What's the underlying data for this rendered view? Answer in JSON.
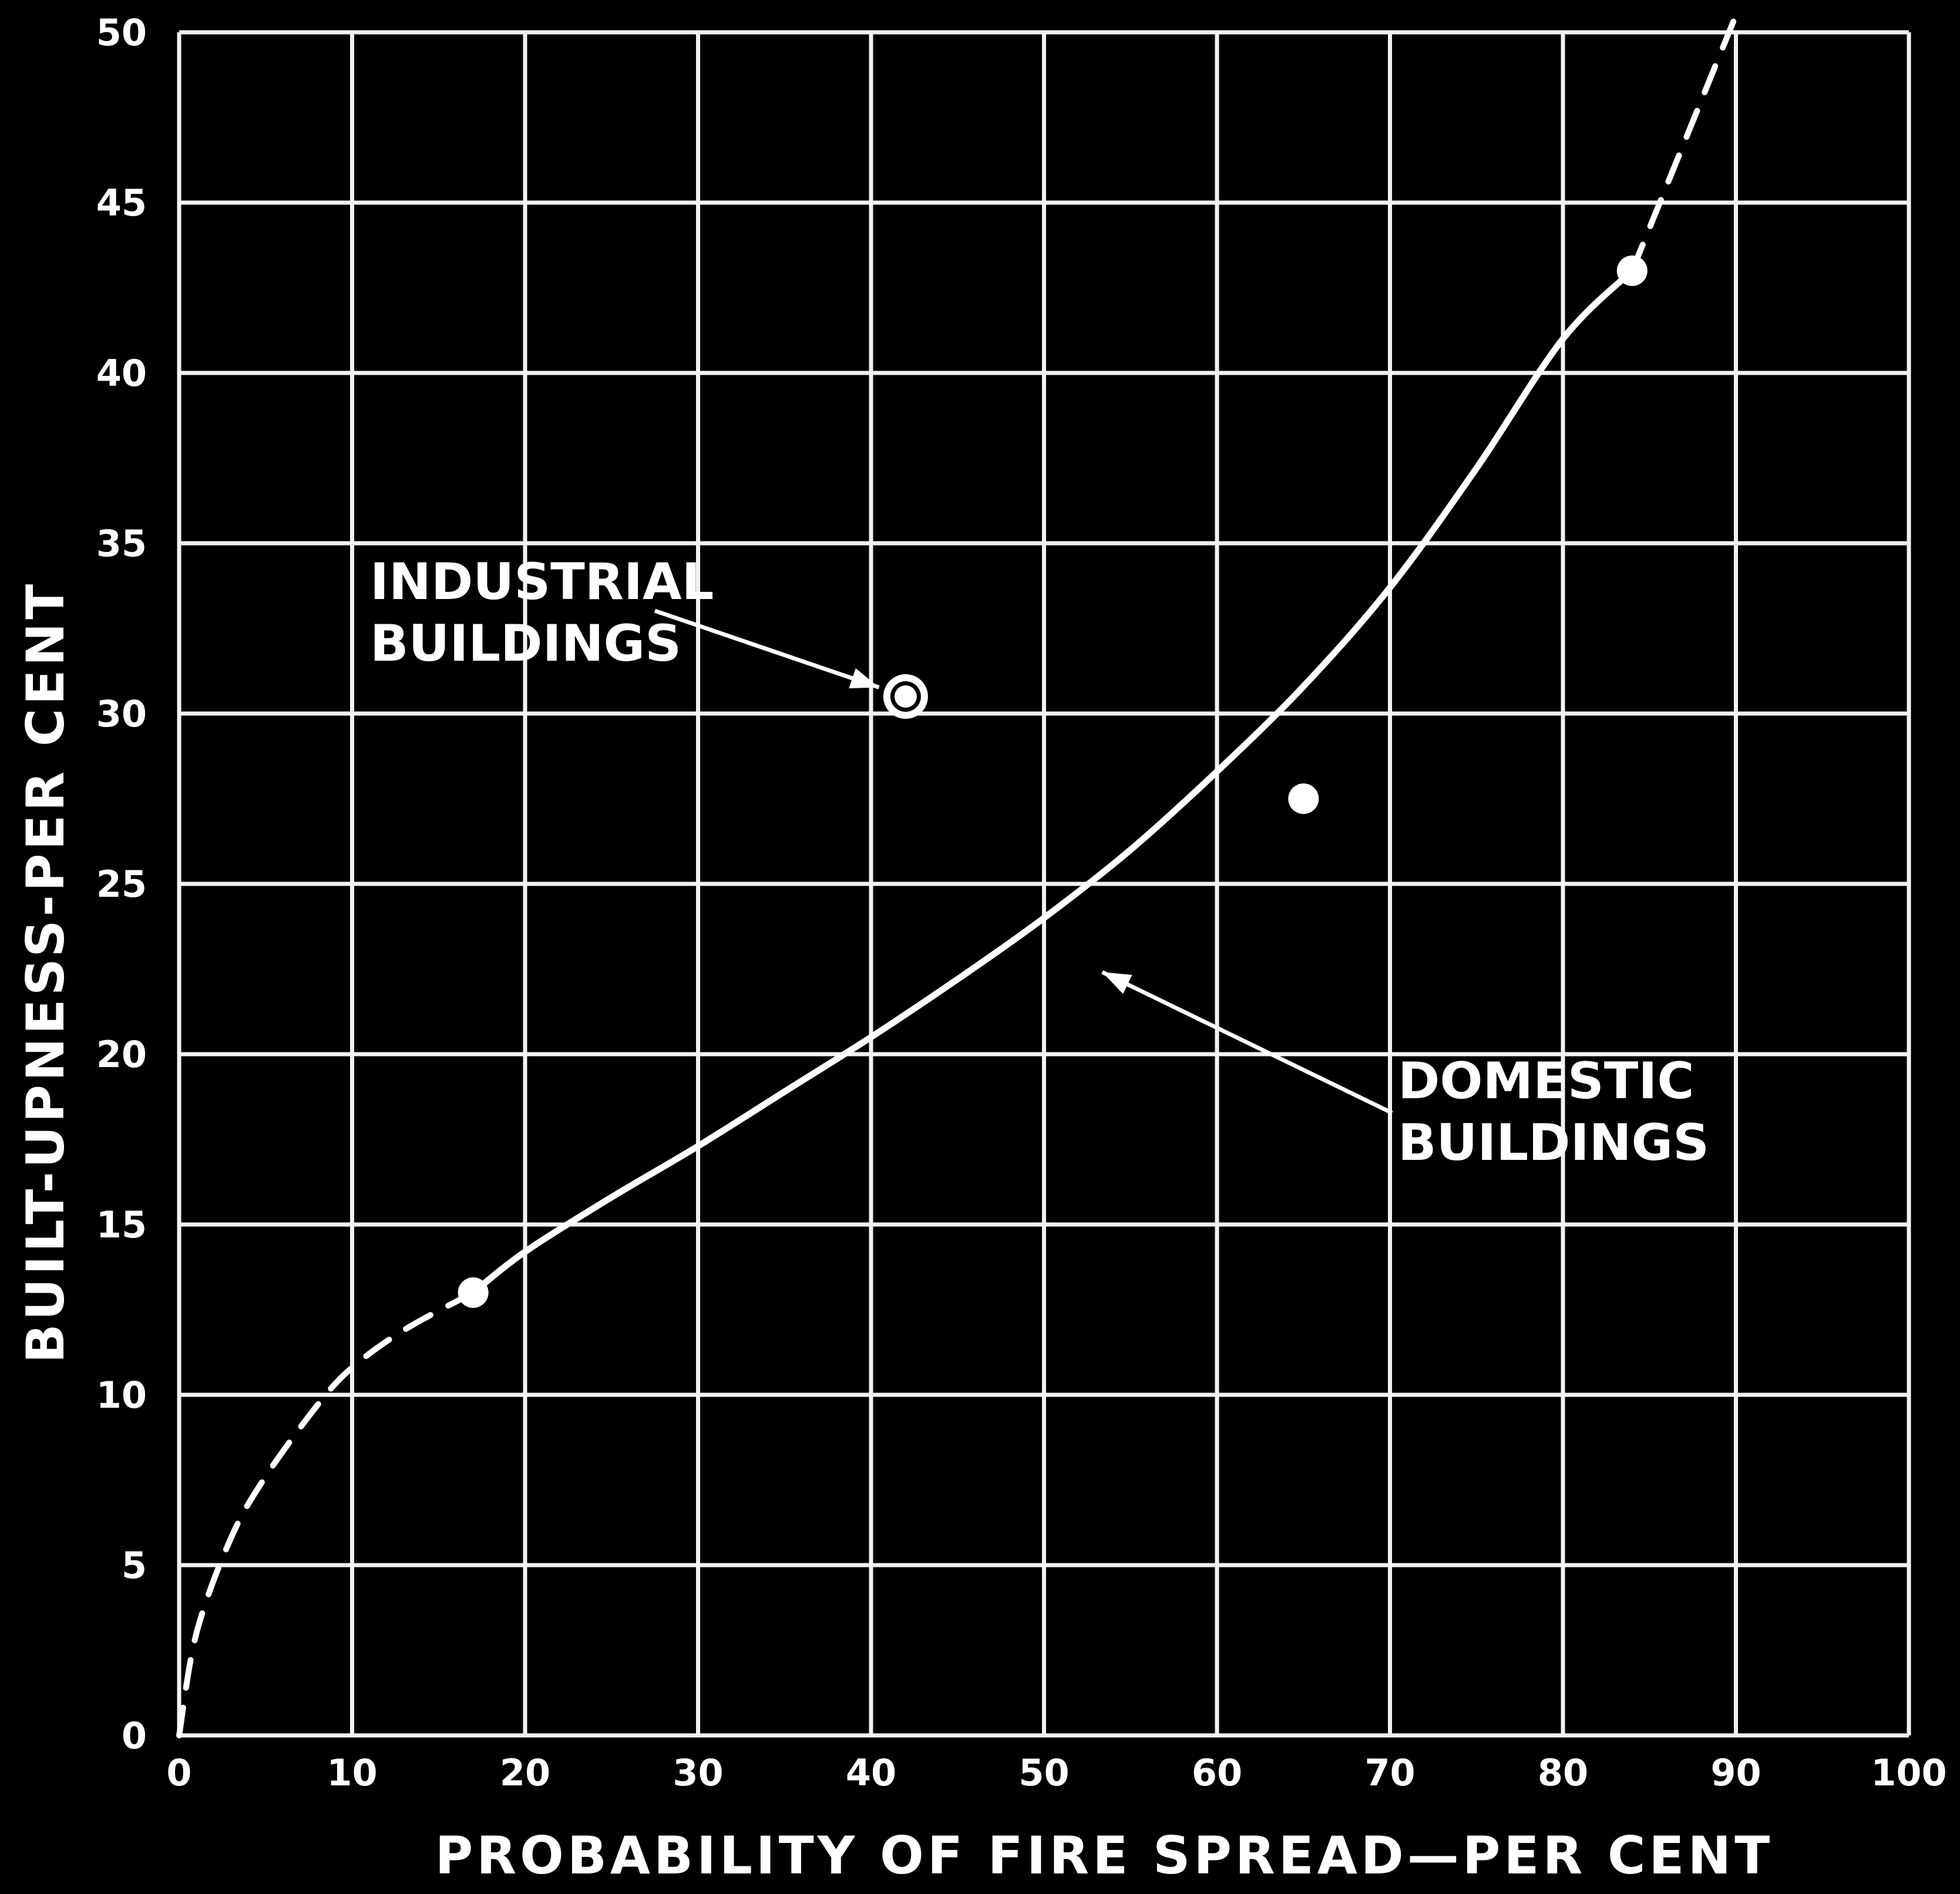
{
  "chart_data": {
    "type": "line",
    "title": "",
    "xlabel": "PROBABILITY OF FIRE SPREAD—PER CENT",
    "ylabel": "BUILT-UPNESS-PER CENT",
    "xlim": [
      0,
      100
    ],
    "ylim": [
      0,
      50
    ],
    "x_ticks": [
      "0",
      "10",
      "20",
      "30",
      "40",
      "50",
      "60",
      "70",
      "80",
      "90",
      "100"
    ],
    "y_ticks": [
      "0",
      "5",
      "10",
      "15",
      "20",
      "25",
      "30",
      "35",
      "40",
      "45",
      "50"
    ],
    "grid": true,
    "series": [
      {
        "name": "DOMESTIC BUILDINGS",
        "style": "solid",
        "x": [
          17,
          20,
          25,
          30,
          35,
          40,
          45,
          50,
          55,
          60,
          65,
          70,
          75,
          80,
          84
        ],
        "y": [
          13,
          14.2,
          15.8,
          17.3,
          18.9,
          20.5,
          22.2,
          24.0,
          26.0,
          28.3,
          30.8,
          33.7,
          37.2,
          41.0,
          43
        ]
      },
      {
        "style": "dashed",
        "x": [
          0,
          1,
          3,
          5,
          8,
          10,
          13,
          17
        ],
        "y": [
          0,
          3,
          5.8,
          7.6,
          9.7,
          10.8,
          11.9,
          13
        ]
      },
      {
        "style": "dashed",
        "x": [
          84,
          86,
          88,
          90
        ],
        "y": [
          43,
          45.5,
          48,
          50.5
        ]
      }
    ],
    "markers": [
      {
        "x": 17,
        "y": 13,
        "style": "filled"
      },
      {
        "x": 65,
        "y": 27.5,
        "style": "filled"
      },
      {
        "x": 84,
        "y": 43,
        "style": "filled"
      },
      {
        "x": 42,
        "y": 30.5,
        "style": "open-circle"
      }
    ],
    "annotations": [
      {
        "lines": [
          "INDUSTRIAL",
          "BUILDINGS"
        ],
        "target_x": 42,
        "target_y": 30.5
      },
      {
        "lines": [
          "DOMESTIC",
          "BUILDINGS"
        ],
        "target_x": 53,
        "target_y": 22.5
      }
    ]
  }
}
